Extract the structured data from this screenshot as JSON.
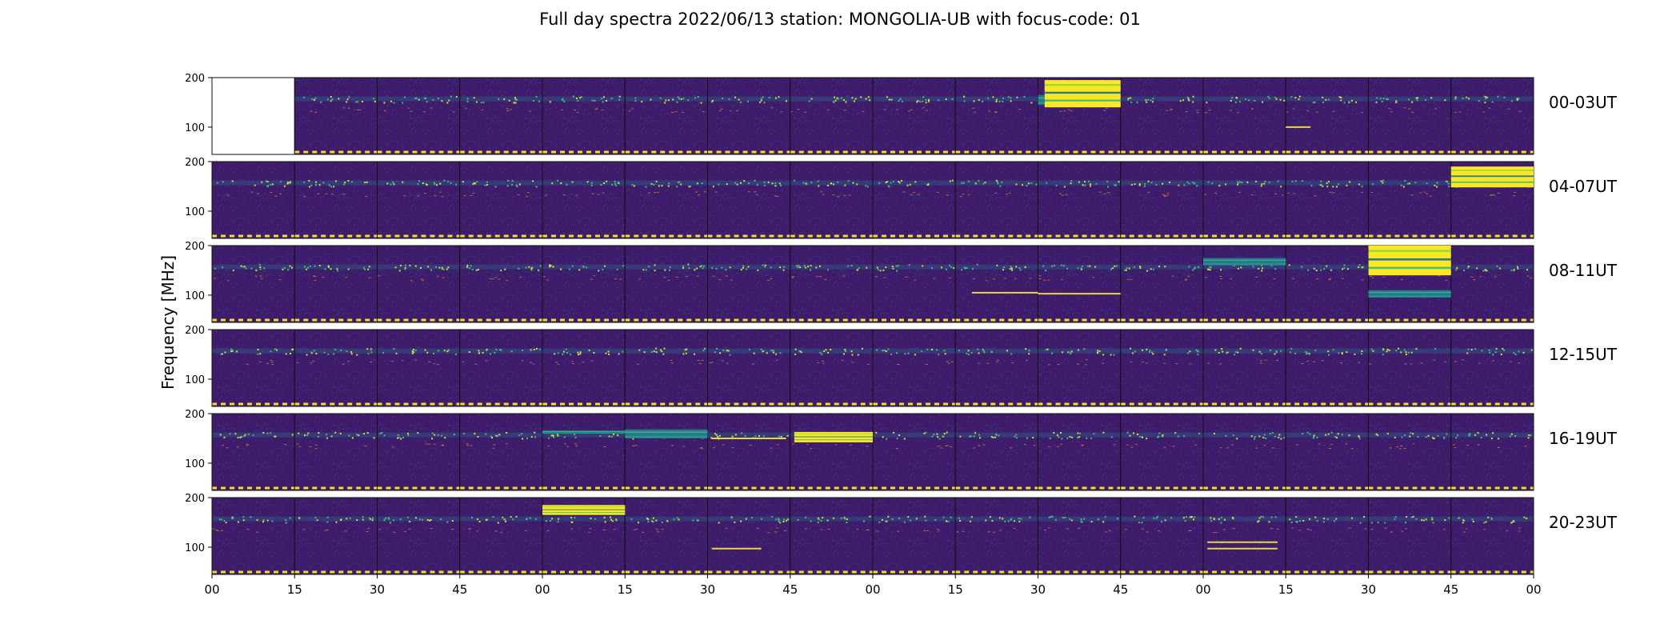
{
  "title": "Full day spectra 2022/06/13 station: MONGOLIA-UB with focus-code: 01",
  "chart_data": {
    "type": "heatmap",
    "title": "Full day spectra 2022/06/13 station: MONGOLIA-UB with focus-code: 01",
    "ylabel": "Frequency [MHz]",
    "xlabel": "",
    "y_ticks": [
      "200",
      "100"
    ],
    "ylim": [
      45,
      200
    ],
    "x_ticks": [
      "00",
      "15",
      "30",
      "45",
      "00",
      "15",
      "30",
      "45",
      "00",
      "15",
      "30",
      "45",
      "00",
      "15",
      "30",
      "45",
      "00"
    ],
    "rows": [
      {
        "label": "00-03UT",
        "missing_panels": [
          0
        ]
      },
      {
        "label": "04-07UT",
        "missing_panels": []
      },
      {
        "label": "08-11UT",
        "missing_panels": []
      },
      {
        "label": "12-15UT",
        "missing_panels": []
      },
      {
        "label": "16-19UT",
        "missing_panels": []
      },
      {
        "label": "20-23UT",
        "missing_panels": []
      }
    ],
    "panels_per_row": 16,
    "panel_minutes": 15,
    "colormap": "viridis",
    "strong_events": [
      {
        "row": 0,
        "panel": 10,
        "t0": 0.08,
        "t1": 1.0,
        "f0": 140,
        "f1": 195
      },
      {
        "row": 1,
        "panel": 15,
        "t0": 0.0,
        "t1": 1.0,
        "f0": 148,
        "f1": 190
      },
      {
        "row": 2,
        "panel": 14,
        "t0": 0.0,
        "t1": 1.0,
        "f0": 140,
        "f1": 200
      },
      {
        "row": 4,
        "panel": 7,
        "t0": 0.05,
        "t1": 1.0,
        "f0": 142,
        "f1": 163
      },
      {
        "row": 5,
        "panel": 4,
        "t0": 0.0,
        "t1": 1.0,
        "f0": 165,
        "f1": 185
      }
    ],
    "moderate_events": [
      {
        "row": 0,
        "panel": 10,
        "t0": 0.0,
        "t1": 0.08,
        "f0": 145,
        "f1": 165
      },
      {
        "row": 4,
        "panel": 5,
        "t0": 0.0,
        "t1": 1.0,
        "f0": 150,
        "f1": 168
      },
      {
        "row": 4,
        "panel": 4,
        "t0": 0.0,
        "t1": 1.0,
        "f0": 160,
        "f1": 166
      },
      {
        "row": 2,
        "panel": 12,
        "t0": 0.0,
        "t1": 1.0,
        "f0": 160,
        "f1": 175
      },
      {
        "row": 2,
        "panel": 14,
        "t0": 0.0,
        "t1": 1.0,
        "f0": 95,
        "f1": 110
      }
    ],
    "faint_lines": [
      {
        "row": 4,
        "panel": 6,
        "t0": 0.05,
        "t1": 0.95,
        "f": 150
      },
      {
        "row": 2,
        "panel": 9,
        "t0": 0.2,
        "t1": 1.0,
        "f": 105
      },
      {
        "row": 2,
        "panel": 10,
        "t0": 0.0,
        "t1": 1.0,
        "f": 103
      },
      {
        "row": 0,
        "panel": 13,
        "t0": 0.0,
        "t1": 0.3,
        "f": 100
      },
      {
        "row": 5,
        "panel": 6,
        "t0": 0.05,
        "t1": 0.65,
        "f": 97
      },
      {
        "row": 5,
        "panel": 12,
        "t0": 0.05,
        "t1": 0.9,
        "f": 97
      },
      {
        "row": 5,
        "panel": 12,
        "t0": 0.05,
        "t1": 0.9,
        "f": 110
      }
    ]
  }
}
